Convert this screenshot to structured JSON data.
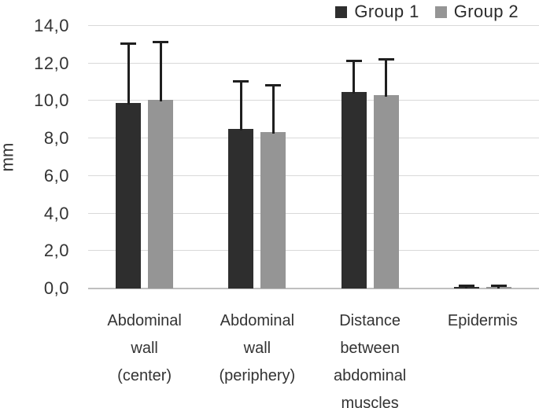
{
  "chart_data": {
    "type": "bar",
    "title": "",
    "ylabel": "mm",
    "xlabel": "",
    "ylim": [
      0,
      14
    ],
    "ytick_step": 2,
    "ytick_labels": [
      "0,0",
      "2,0",
      "4,0",
      "6,0",
      "8,0",
      "10,0",
      "12,0",
      "14,0"
    ],
    "decimal_separator": ",",
    "grid": true,
    "legend_position": "top-right",
    "categories": [
      "Abdominal wall (center)",
      "Abdominal wall (periphery)",
      "Distance between abdominal muscles",
      "Epidermis"
    ],
    "series": [
      {
        "name": "Group 1",
        "color": "#2e2e2e",
        "values": [
          9.9,
          8.5,
          10.5,
          0.1
        ],
        "error_top": [
          13.1,
          11.1,
          12.2,
          0.2
        ]
      },
      {
        "name": "Group 2",
        "color": "#959595",
        "values": [
          10.05,
          8.35,
          10.3,
          0.1
        ],
        "error_top": [
          13.2,
          10.9,
          12.3,
          0.2
        ]
      }
    ],
    "colors": {
      "error_bar": "#1f1f1f",
      "gridline": "#d9d9d9",
      "axis_line": "#bfbfbf",
      "text": "#333333"
    }
  }
}
